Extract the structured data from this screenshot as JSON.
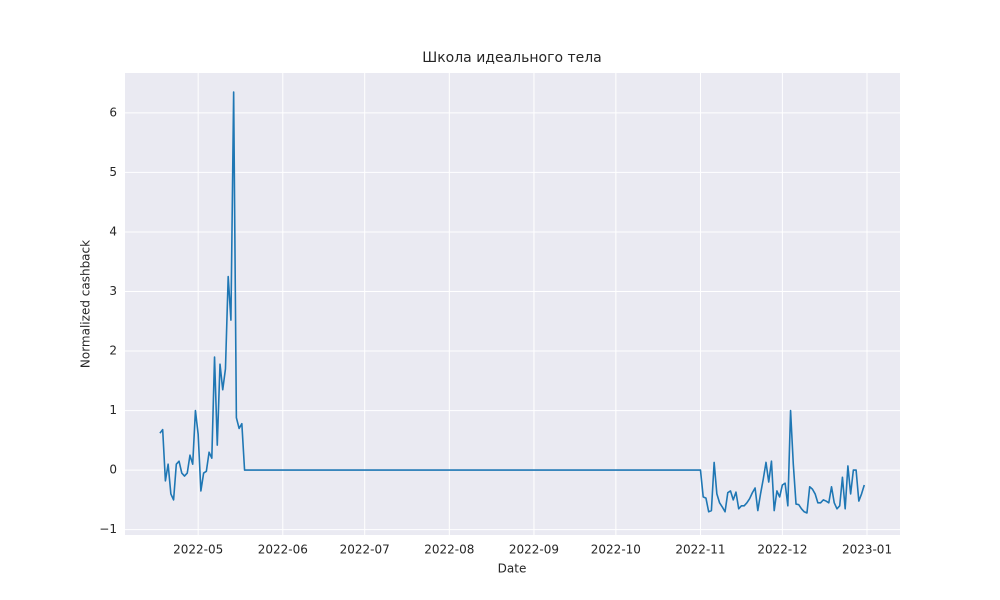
{
  "chart_data": {
    "type": "line",
    "title": "Школа идеального тела",
    "xlabel": "Date",
    "ylabel": "Normalized cashback",
    "categories": [
      null,
      null,
      null,
      null,
      null,
      null,
      null,
      null,
      null,
      null,
      null,
      null,
      null,
      null,
      "2022-05",
      null,
      null,
      null,
      null,
      null,
      null,
      null,
      null,
      null,
      null,
      null,
      null,
      null,
      null,
      null,
      null,
      null,
      null,
      null,
      null,
      null,
      null,
      null,
      null,
      null,
      null,
      null,
      null,
      null,
      null,
      "2022-06",
      null,
      null,
      null,
      null,
      null,
      null,
      null,
      null,
      null,
      null,
      null,
      null,
      null,
      null,
      null,
      null,
      null,
      null,
      null,
      null,
      null,
      null,
      null,
      null,
      null,
      null,
      null,
      null,
      null,
      "2022-07",
      null,
      null,
      null,
      null,
      null,
      null,
      null,
      null,
      null,
      null,
      null,
      null,
      null,
      null,
      null,
      null,
      null,
      null,
      null,
      null,
      null,
      null,
      null,
      null,
      null,
      null,
      null,
      null,
      null,
      null,
      "2022-08",
      null,
      null,
      null,
      null,
      null,
      null,
      null,
      null,
      null,
      null,
      null,
      null,
      null,
      null,
      null,
      null,
      null,
      null,
      null,
      null,
      null,
      null,
      null,
      null,
      null,
      null,
      null,
      null,
      null,
      null,
      "2022-09",
      null,
      null,
      null,
      null,
      null,
      null,
      null,
      null,
      null,
      null,
      null,
      null,
      null,
      null,
      null,
      null,
      null,
      null,
      null,
      null,
      null,
      null,
      null,
      null,
      null,
      null,
      null,
      null,
      null,
      "2022-10",
      null,
      null,
      null,
      null,
      null,
      null,
      null,
      null,
      null,
      null,
      null,
      null,
      null,
      null,
      null,
      null,
      null,
      null,
      null,
      null,
      null,
      null,
      null,
      null,
      null,
      null,
      null,
      null,
      null,
      null,
      "2022-11",
      null,
      null,
      null,
      null,
      null,
      null,
      null,
      null,
      null,
      null,
      null,
      null,
      null,
      null,
      null,
      null,
      null,
      null,
      null,
      null,
      null,
      null,
      null,
      null,
      null,
      null,
      null,
      null,
      null,
      "2022-12",
      null,
      null,
      null,
      null,
      null,
      null,
      null,
      null,
      null,
      null,
      null,
      null,
      null,
      null,
      null,
      null,
      null,
      null,
      null,
      null,
      null,
      null,
      null,
      null,
      null,
      null,
      null,
      null,
      null,
      null,
      "2023-01"
    ],
    "series": [
      {
        "name": "Normalized cashback",
        "color": "#1f77b4",
        "values": [
          0.62,
          0.68,
          -0.18,
          0.1,
          -0.4,
          -0.5,
          0.1,
          0.15,
          -0.05,
          -0.1,
          -0.05,
          0.25,
          0.1,
          1.0,
          0.6,
          -0.35,
          -0.05,
          -0.02,
          0.3,
          0.2,
          1.9,
          0.42,
          1.78,
          1.35,
          1.7,
          3.25,
          2.52,
          6.35,
          0.88,
          0.7,
          0.78,
          0,
          0,
          0,
          0,
          0,
          0,
          0,
          0,
          0,
          0,
          0,
          0,
          0,
          0,
          0,
          0,
          0,
          0,
          0,
          0,
          0,
          0,
          0,
          0,
          0,
          0,
          0,
          0,
          0,
          0,
          0,
          0,
          0,
          0,
          0,
          0,
          0,
          0,
          0,
          0,
          0,
          0,
          0,
          0,
          0,
          0,
          0,
          0,
          0,
          0,
          0,
          0,
          0,
          0,
          0,
          0,
          0,
          0,
          0,
          0,
          0,
          0,
          0,
          0,
          0,
          0,
          0,
          0,
          0,
          0,
          0,
          0,
          0,
          0,
          0,
          0,
          0,
          0,
          0,
          0,
          0,
          0,
          0,
          0,
          0,
          0,
          0,
          0,
          0,
          0,
          0,
          0,
          0,
          0,
          0,
          0,
          0,
          0,
          0,
          0,
          0,
          0,
          0,
          0,
          0,
          0,
          0,
          0,
          0,
          0,
          0,
          0,
          0,
          0,
          0,
          0,
          0,
          0,
          0,
          0,
          0,
          0,
          0,
          0,
          0,
          0,
          0,
          0,
          0,
          0,
          0,
          0,
          0,
          0,
          0,
          0,
          0,
          0,
          0,
          0,
          0,
          0,
          0,
          0,
          0,
          0,
          0,
          0,
          0,
          0,
          0,
          0,
          0,
          0,
          0,
          0,
          0,
          0,
          0,
          0,
          0,
          0,
          0,
          0,
          0,
          0,
          0,
          0,
          -0.45,
          -0.47,
          -0.7,
          -0.68,
          0.13,
          -0.4,
          -0.55,
          -0.62,
          -0.7,
          -0.38,
          -0.35,
          -0.5,
          -0.37,
          -0.65,
          -0.6,
          -0.6,
          -0.55,
          -0.48,
          -0.38,
          -0.3,
          -0.68,
          -0.4,
          -0.15,
          0.13,
          -0.2,
          0.15,
          -0.68,
          -0.35,
          -0.45,
          -0.25,
          -0.22,
          -0.6,
          1.0,
          0.1,
          -0.57,
          -0.58,
          -0.65,
          -0.7,
          -0.72,
          -0.28,
          -0.32,
          -0.4,
          -0.55,
          -0.55,
          -0.5,
          -0.52,
          -0.55,
          -0.28,
          -0.55,
          -0.65,
          -0.6,
          -0.12,
          -0.65,
          0.07,
          -0.4,
          0.0,
          0.0,
          -0.52,
          -0.4,
          -0.25,
          null
        ]
      }
    ],
    "ylim": [
      -1.09,
      6.67
    ],
    "yticks": [
      {
        "value": -1,
        "label": "−1"
      },
      0,
      1,
      2,
      3,
      4,
      5,
      6
    ],
    "grid": true,
    "background": "#eaeaf2"
  }
}
